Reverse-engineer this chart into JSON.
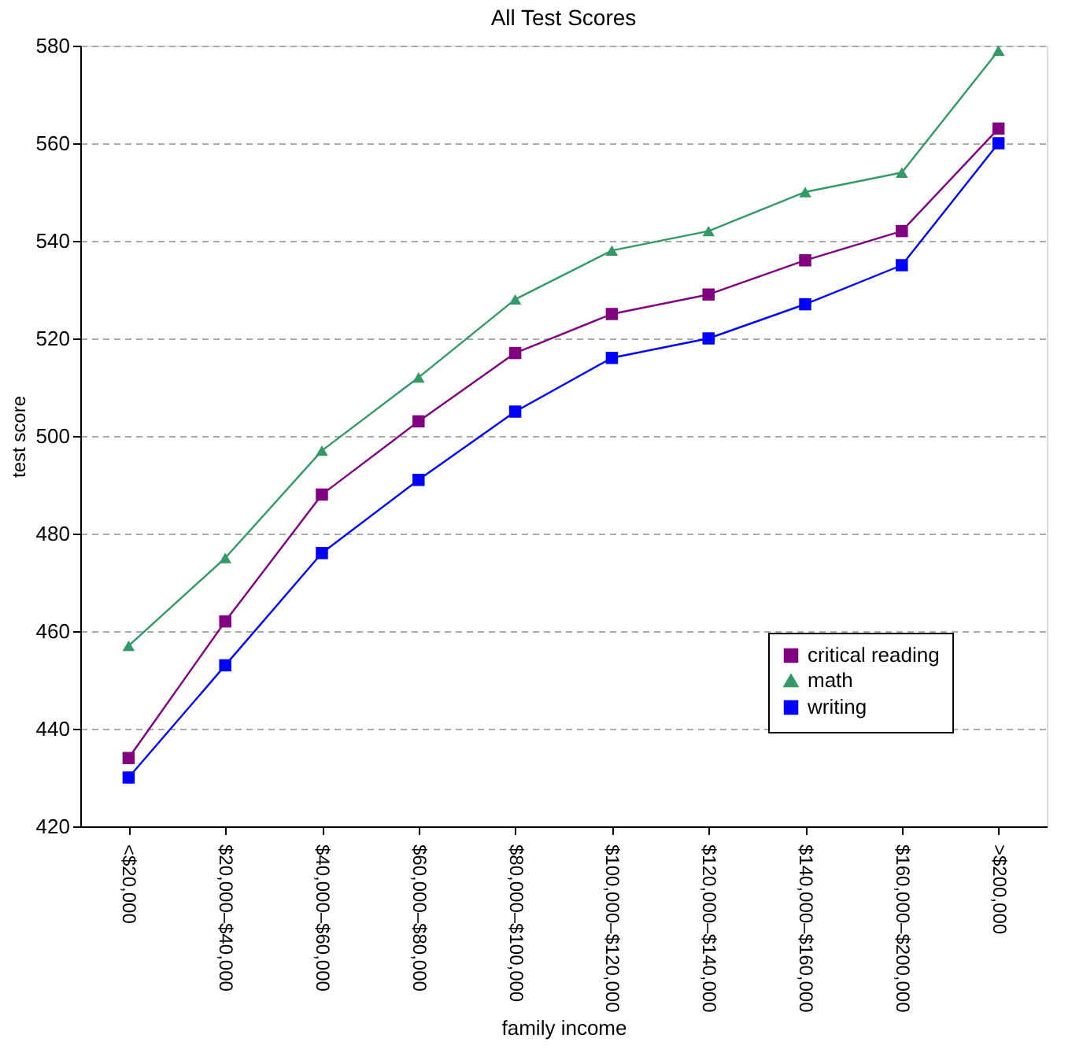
{
  "chart_data": {
    "type": "line",
    "title": "All Test Scores",
    "xlabel": "family income",
    "ylabel": "test score",
    "categories": [
      "<$20,000",
      "$20,000–$40,000",
      "$40,000–$60,000",
      "$60,000–$80,000",
      "$80,000–$100,000",
      "$100,000–$120,000",
      "$120,000–$140,000",
      "$140,000–$160,000",
      "$160,000–$200,000",
      ">$200,000"
    ],
    "series": [
      {
        "name": "critical reading",
        "color": "#800080",
        "marker": "square",
        "values": [
          434,
          462,
          488,
          503,
          517,
          525,
          529,
          536,
          542,
          563
        ]
      },
      {
        "name": "math",
        "color": "#339966",
        "marker": "triangle",
        "values": [
          457,
          475,
          497,
          512,
          528,
          538,
          542,
          550,
          554,
          579
        ]
      },
      {
        "name": "writing",
        "color": "#0000ff",
        "marker": "square",
        "values": [
          430,
          453,
          476,
          491,
          505,
          516,
          520,
          527,
          535,
          560
        ]
      }
    ],
    "ylim": [
      420,
      580
    ],
    "yticks": [
      420,
      440,
      460,
      480,
      500,
      520,
      540,
      560,
      580
    ],
    "grid": "y",
    "legend": "bottom right",
    "line_style": "solid"
  }
}
